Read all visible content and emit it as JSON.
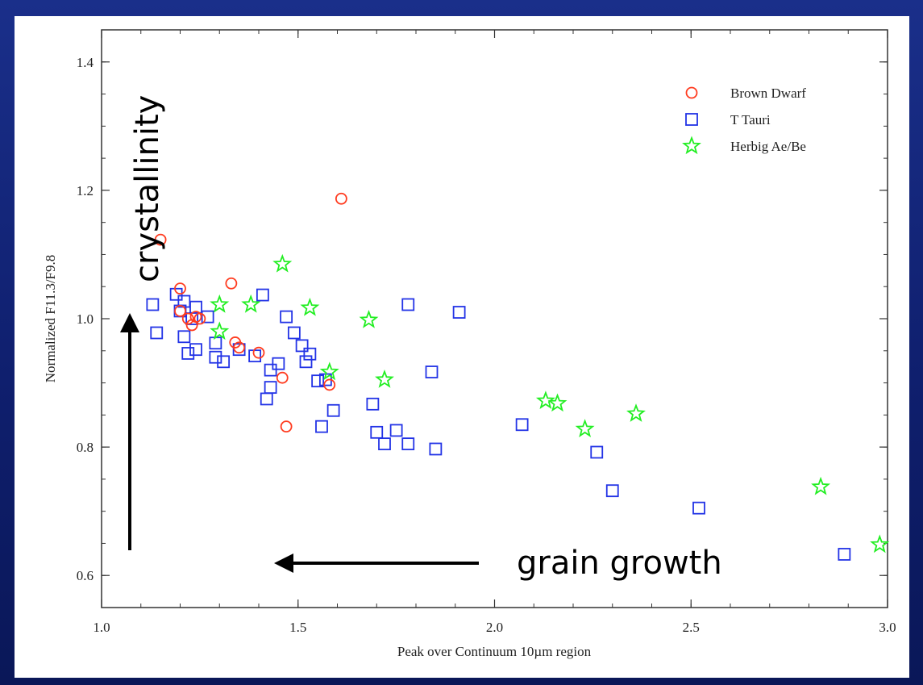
{
  "colors": {
    "brown_dwarf": "#ff3b1f",
    "t_tauri": "#2233e6",
    "herbig": "#22ee22"
  },
  "chart_data": {
    "type": "scatter",
    "title": "",
    "xlabel": "Peak over Continuum 10µm region",
    "ylabel": "Normalized F11.3/F9.8",
    "xlim": [
      1.0,
      3.0
    ],
    "ylim": [
      0.55,
      1.45
    ],
    "xticks": [
      "1.0",
      "1.5",
      "2.0",
      "2.5",
      "3.0"
    ],
    "yticks": [
      "0.6",
      "0.8",
      "1.0",
      "1.2",
      "1.4"
    ],
    "grid": false,
    "legend_position": "top-right",
    "series": [
      {
        "name": "Brown Dwarf",
        "marker": "circle",
        "points": [
          [
            1.15,
            1.123
          ],
          [
            1.2,
            1.047
          ],
          [
            1.2,
            1.012
          ],
          [
            1.22,
            1.0
          ],
          [
            1.23,
            0.99
          ],
          [
            1.24,
            1.003
          ],
          [
            1.25,
            1.0
          ],
          [
            1.33,
            1.055
          ],
          [
            1.34,
            0.963
          ],
          [
            1.35,
            0.955
          ],
          [
            1.4,
            0.947
          ],
          [
            1.46,
            0.908
          ],
          [
            1.47,
            0.832
          ],
          [
            1.58,
            0.897
          ],
          [
            1.61,
            1.187
          ]
        ]
      },
      {
        "name": "T Tauri",
        "marker": "square",
        "points": [
          [
            1.13,
            1.022
          ],
          [
            1.14,
            0.978
          ],
          [
            1.19,
            1.038
          ],
          [
            1.2,
            1.012
          ],
          [
            1.21,
            1.027
          ],
          [
            1.21,
            0.972
          ],
          [
            1.22,
            0.946
          ],
          [
            1.23,
            1.0
          ],
          [
            1.24,
            0.952
          ],
          [
            1.24,
            1.018
          ],
          [
            1.27,
            1.003
          ],
          [
            1.29,
            0.962
          ],
          [
            1.29,
            0.94
          ],
          [
            1.31,
            0.933
          ],
          [
            1.35,
            0.952
          ],
          [
            1.39,
            0.942
          ],
          [
            1.41,
            1.037
          ],
          [
            1.42,
            0.875
          ],
          [
            1.43,
            0.92
          ],
          [
            1.43,
            0.893
          ],
          [
            1.45,
            0.93
          ],
          [
            1.47,
            1.003
          ],
          [
            1.49,
            0.978
          ],
          [
            1.51,
            0.958
          ],
          [
            1.52,
            0.933
          ],
          [
            1.53,
            0.945
          ],
          [
            1.55,
            0.903
          ],
          [
            1.56,
            0.832
          ],
          [
            1.57,
            0.905
          ],
          [
            1.59,
            0.857
          ],
          [
            1.69,
            0.867
          ],
          [
            1.7,
            0.823
          ],
          [
            1.72,
            0.805
          ],
          [
            1.75,
            0.826
          ],
          [
            1.78,
            0.805
          ],
          [
            1.78,
            1.022
          ],
          [
            1.84,
            0.917
          ],
          [
            1.85,
            0.797
          ],
          [
            1.91,
            1.01
          ],
          [
            2.07,
            0.835
          ],
          [
            2.26,
            0.792
          ],
          [
            2.3,
            0.732
          ],
          [
            2.52,
            0.705
          ],
          [
            2.89,
            0.633
          ]
        ]
      },
      {
        "name": "Herbig Ae/Be",
        "marker": "star",
        "points": [
          [
            1.3,
            1.022
          ],
          [
            1.3,
            0.98
          ],
          [
            1.38,
            1.022
          ],
          [
            1.46,
            1.085
          ],
          [
            1.53,
            1.017
          ],
          [
            1.58,
            0.917
          ],
          [
            1.68,
            0.998
          ],
          [
            1.72,
            0.905
          ],
          [
            2.13,
            0.872
          ],
          [
            2.16,
            0.868
          ],
          [
            2.23,
            0.828
          ],
          [
            2.36,
            0.852
          ],
          [
            2.83,
            0.738
          ],
          [
            2.98,
            0.648
          ]
        ]
      }
    ],
    "annotations": [
      {
        "text": "crystallinity",
        "arrow": "up"
      },
      {
        "text": "grain growth",
        "arrow": "left"
      }
    ]
  }
}
